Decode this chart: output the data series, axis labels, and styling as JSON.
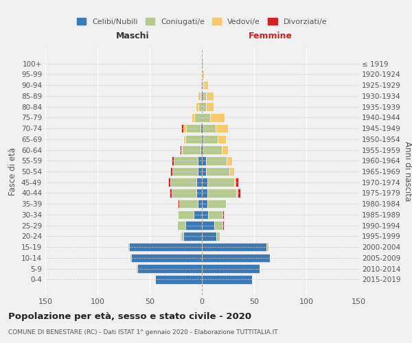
{
  "age_groups": [
    "0-4",
    "5-9",
    "10-14",
    "15-19",
    "20-24",
    "25-29",
    "30-34",
    "35-39",
    "40-44",
    "45-49",
    "50-54",
    "55-59",
    "60-64",
    "65-69",
    "70-74",
    "75-79",
    "80-84",
    "85-89",
    "90-94",
    "95-99",
    "100+"
  ],
  "birth_years": [
    "2015-2019",
    "2010-2014",
    "2005-2009",
    "2000-2004",
    "1995-1999",
    "1990-1994",
    "1985-1989",
    "1980-1984",
    "1975-1979",
    "1970-1974",
    "1965-1969",
    "1960-1964",
    "1955-1959",
    "1950-1954",
    "1945-1949",
    "1940-1944",
    "1935-1939",
    "1930-1934",
    "1925-1929",
    "1920-1924",
    "≤ 1919"
  ],
  "colors": {
    "celibe": "#3d7ab5",
    "coniugato": "#b5c98e",
    "vedovo": "#f5c96e",
    "divorziato": "#cc2222"
  },
  "male": {
    "celibe": [
      45,
      62,
      68,
      70,
      18,
      16,
      8,
      4,
      5,
      5,
      4,
      4,
      1,
      0,
      1,
      0,
      0,
      0,
      0,
      0,
      0
    ],
    "coniugato": [
      0,
      1,
      1,
      1,
      2,
      8,
      15,
      18,
      24,
      25,
      24,
      23,
      18,
      16,
      14,
      7,
      3,
      1,
      0,
      0,
      0
    ],
    "vedovo": [
      0,
      0,
      0,
      0,
      1,
      0,
      0,
      0,
      0,
      0,
      0,
      0,
      1,
      2,
      3,
      3,
      3,
      3,
      1,
      0,
      0
    ],
    "divorziato": [
      0,
      0,
      0,
      0,
      0,
      0,
      0,
      1,
      2,
      2,
      2,
      2,
      1,
      0,
      2,
      0,
      0,
      0,
      0,
      0,
      0
    ]
  },
  "female": {
    "celibe": [
      48,
      55,
      65,
      62,
      14,
      12,
      6,
      5,
      5,
      5,
      4,
      4,
      1,
      1,
      1,
      0,
      0,
      1,
      0,
      0,
      0
    ],
    "coniugato": [
      0,
      1,
      1,
      2,
      3,
      8,
      14,
      18,
      28,
      26,
      22,
      20,
      18,
      14,
      12,
      8,
      4,
      3,
      1,
      0,
      0
    ],
    "vedovo": [
      0,
      0,
      0,
      0,
      0,
      0,
      0,
      0,
      1,
      1,
      5,
      5,
      6,
      8,
      12,
      14,
      7,
      7,
      5,
      2,
      1
    ],
    "divorziato": [
      0,
      0,
      0,
      0,
      0,
      1,
      1,
      0,
      3,
      3,
      0,
      0,
      0,
      0,
      0,
      0,
      0,
      0,
      0,
      0,
      0
    ]
  },
  "title": "Popolazione per età, sesso e stato civile - 2020",
  "subtitle": "COMUNE DI BENESTARE (RC) - Dati ISTAT 1° gennaio 2020 - Elaborazione TUTTITALIA.IT",
  "xlabel_left": "Maschi",
  "xlabel_right": "Femmine",
  "ylabel_left": "Fasce di età",
  "ylabel_right": "Anni di nascita",
  "xlim": 150,
  "legend_labels": [
    "Celibi/Nubili",
    "Coniugati/e",
    "Vedovi/e",
    "Divorziati/e"
  ],
  "background_color": "#f0f0f0"
}
